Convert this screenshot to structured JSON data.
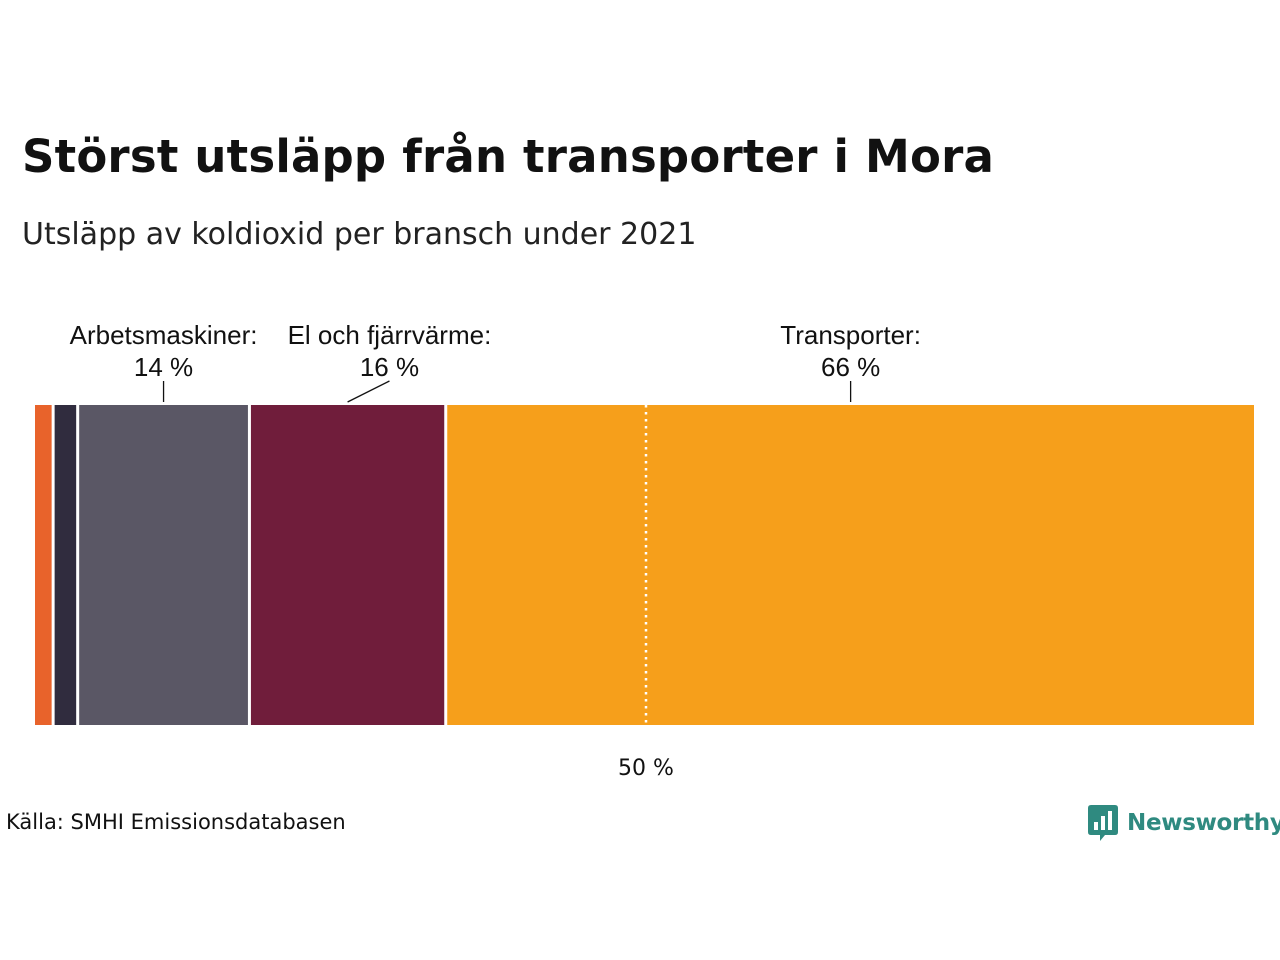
{
  "header": {
    "title": "Störst utsläpp från transporter i Mora",
    "subtitle": "Utsläpp av koldioxid per bransch under 2021"
  },
  "footer": {
    "source": "Källa: SMHI Emissionsdatabasen",
    "brand": "Newsworthy",
    "brand_color": "#2f8a80"
  },
  "chart_data": {
    "type": "bar",
    "orientation": "horizontal-stacked-100",
    "segments": [
      {
        "category": "",
        "value": 1.6,
        "color": "#e8632b",
        "label": "",
        "value_label": ""
      },
      {
        "category": "",
        "value": 2.0,
        "color": "#302c3e",
        "label": "",
        "value_label": ""
      },
      {
        "category": "Arbetsmaskiner",
        "value": 14,
        "color": "#5a5765",
        "label": "Arbetsmaskiner:",
        "value_label": "14 %"
      },
      {
        "category": "El och fjärrvärme",
        "value": 16,
        "color": "#701d3b",
        "label": "El och fjärrvärme:",
        "value_label": "16 %"
      },
      {
        "category": "Transporter",
        "value": 66,
        "color": "#f69f1b",
        "label": "Transporter:",
        "value_label": "66 %"
      }
    ],
    "reference_line": {
      "value": 50,
      "label": "50 %"
    },
    "xlim": [
      0,
      100
    ],
    "unit": "%"
  }
}
